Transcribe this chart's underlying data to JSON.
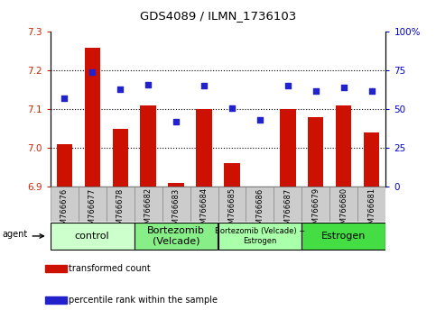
{
  "title": "GDS4089 / ILMN_1736103",
  "samples": [
    "GSM766676",
    "GSM766677",
    "GSM766678",
    "GSM766682",
    "GSM766683",
    "GSM766684",
    "GSM766685",
    "GSM766686",
    "GSM766687",
    "GSM766679",
    "GSM766680",
    "GSM766681"
  ],
  "bar_values": [
    7.01,
    7.26,
    7.05,
    7.11,
    6.91,
    7.1,
    6.96,
    6.9,
    7.1,
    7.08,
    7.11,
    7.04
  ],
  "scatter_values": [
    57,
    74,
    63,
    66,
    42,
    65,
    51,
    43,
    65,
    62,
    64,
    62
  ],
  "ylim_left": [
    6.9,
    7.3
  ],
  "ylim_right": [
    0,
    100
  ],
  "yticks_left": [
    6.9,
    7.0,
    7.1,
    7.2,
    7.3
  ],
  "yticks_right": [
    0,
    25,
    50,
    75,
    100
  ],
  "ytick_labels_right": [
    "0",
    "25",
    "50",
    "75",
    "100%"
  ],
  "bar_color": "#cc1100",
  "scatter_color": "#2222cc",
  "grid_values": [
    7.0,
    7.1,
    7.2
  ],
  "groups": [
    {
      "label": "control",
      "start": 0,
      "end": 3,
      "color": "#ccffcc",
      "fontsize": 8
    },
    {
      "label": "Bortezomib\n(Velcade)",
      "start": 3,
      "end": 6,
      "color": "#88ee88",
      "fontsize": 8
    },
    {
      "label": "Bortezomib (Velcade) +\nEstrogen",
      "start": 6,
      "end": 9,
      "color": "#aaffaa",
      "fontsize": 6
    },
    {
      "label": "Estrogen",
      "start": 9,
      "end": 12,
      "color": "#44dd44",
      "fontsize": 8
    }
  ],
  "legend_items": [
    {
      "label": "transformed count",
      "color": "#cc1100"
    },
    {
      "label": "percentile rank within the sample",
      "color": "#2222cc"
    }
  ],
  "bar_bottom": 6.9,
  "xtick_bg_color": "#cccccc",
  "background_color": "#ffffff",
  "left_color": "#cc2200",
  "right_color": "#0000cc"
}
